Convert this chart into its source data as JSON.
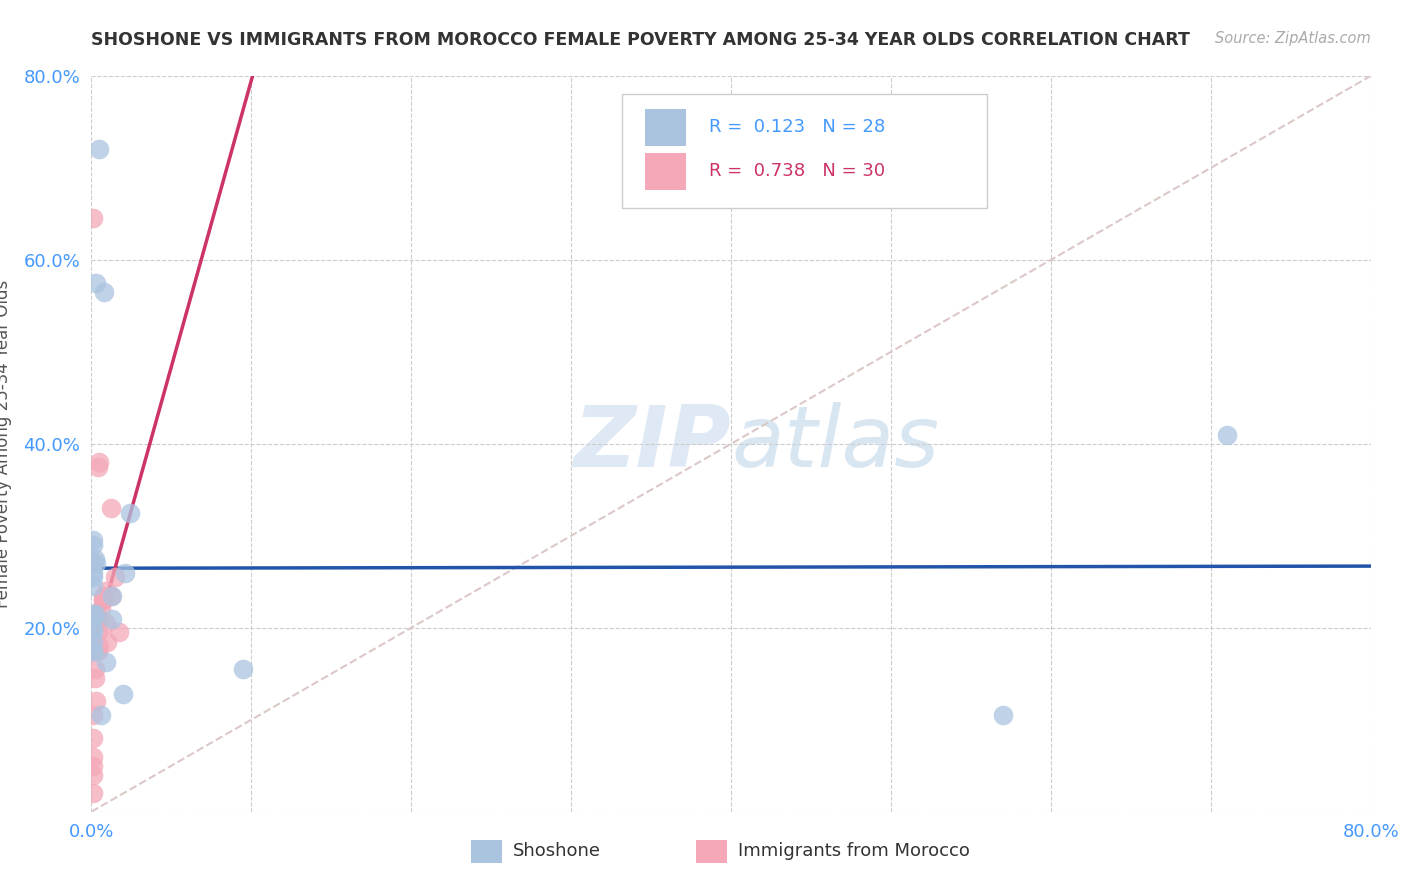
{
  "title": "SHOSHONE VS IMMIGRANTS FROM MOROCCO FEMALE POVERTY AMONG 25-34 YEAR OLDS CORRELATION CHART",
  "source": "Source: ZipAtlas.com",
  "ylabel": "Female Poverty Among 25-34 Year Olds",
  "xlim": [
    0.0,
    0.8
  ],
  "ylim": [
    0.0,
    0.8
  ],
  "legend_label1": "Shoshone",
  "legend_label2": "Immigrants from Morocco",
  "R1": "0.123",
  "N1": "28",
  "R2": "0.738",
  "N2": "30",
  "color1": "#aac4e0",
  "color2": "#f4a8b8",
  "line_color1": "#2255aa",
  "line_color2": "#cc3366",
  "diagonal_color": "#ddc8c8",
  "background": "#ffffff",
  "watermark_zip": "ZIP",
  "watermark_atlas": "atlas",
  "axis_tick_color": "#4499ff",
  "title_color": "#333333",
  "source_color": "#aaaaaa",
  "shoshone_x": [
    0.005,
    0.008,
    0.001,
    0.001,
    0.003,
    0.001,
    0.001,
    0.001,
    0.001,
    0.002,
    0.013,
    0.013,
    0.001,
    0.001,
    0.009,
    0.02,
    0.006,
    0.001,
    0.001,
    0.001,
    0.002,
    0.003,
    0.095,
    0.57,
    0.71,
    0.001,
    0.024,
    0.021
  ],
  "shoshone_y": [
    0.72,
    0.565,
    0.245,
    0.29,
    0.575,
    0.255,
    0.21,
    0.215,
    0.26,
    0.275,
    0.235,
    0.21,
    0.2,
    0.185,
    0.163,
    0.128,
    0.105,
    0.175,
    0.175,
    0.195,
    0.215,
    0.27,
    0.155,
    0.105,
    0.41,
    0.295,
    0.325,
    0.26
  ],
  "morocco_x": [
    0.001,
    0.001,
    0.001,
    0.001,
    0.001,
    0.001,
    0.003,
    0.002,
    0.002,
    0.002,
    0.004,
    0.005,
    0.004,
    0.004,
    0.003,
    0.006,
    0.007,
    0.007,
    0.007,
    0.009,
    0.009,
    0.01,
    0.012,
    0.015,
    0.017,
    0.012,
    0.004,
    0.005,
    0.001,
    0.001
  ],
  "morocco_y": [
    0.02,
    0.04,
    0.05,
    0.06,
    0.08,
    0.105,
    0.12,
    0.145,
    0.155,
    0.175,
    0.175,
    0.18,
    0.195,
    0.21,
    0.215,
    0.22,
    0.23,
    0.235,
    0.23,
    0.24,
    0.205,
    0.185,
    0.235,
    0.255,
    0.195,
    0.33,
    0.375,
    0.38,
    0.645,
    0.27
  ]
}
